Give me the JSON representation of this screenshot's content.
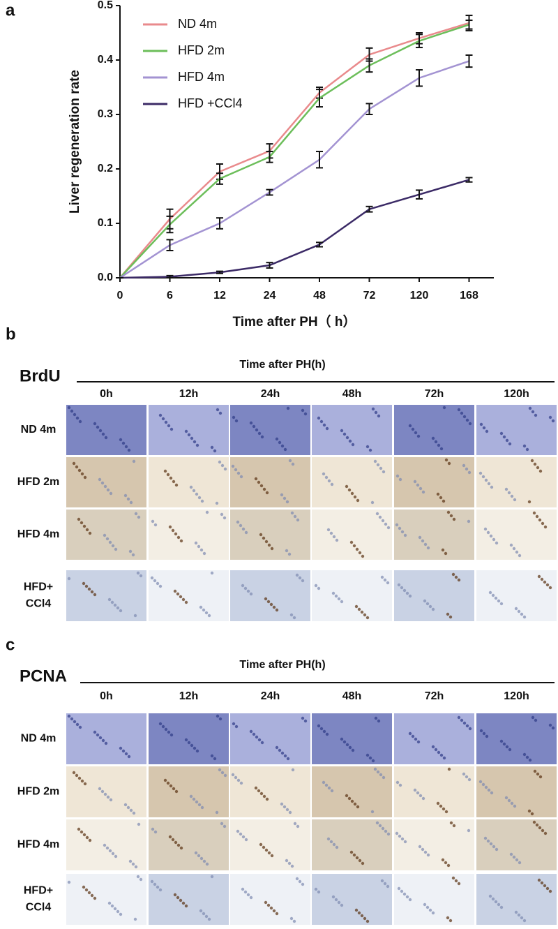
{
  "chart_data": {
    "type": "line",
    "panel_label": "a",
    "ylabel": "Liver regeneration rate",
    "xlabel": "Time after PH（ h）",
    "categories": [
      "0",
      "6",
      "12",
      "24",
      "48",
      "72",
      "120",
      "168"
    ],
    "ylim": [
      0,
      0.5
    ],
    "yticks": [
      {
        "value": 0,
        "label": "0.0"
      },
      0.1,
      0.2,
      0.3,
      0.4,
      0.5
    ],
    "series": [
      {
        "name": "ND 4m",
        "color": "#e98a8c",
        "values": [
          0,
          0.108,
          0.195,
          0.233,
          0.34,
          0.41,
          0.44,
          0.468
        ],
        "errors": [
          0,
          0.018,
          0.014,
          0.013,
          0.01,
          0.012,
          0.01,
          0.014
        ]
      },
      {
        "name": "HFD 2m",
        "color": "#6cbe5a",
        "values": [
          0,
          0.098,
          0.182,
          0.222,
          0.33,
          0.39,
          0.435,
          0.465
        ],
        "errors": [
          0,
          0.015,
          0.01,
          0.01,
          0.016,
          0.012,
          0.012,
          0.008
        ]
      },
      {
        "name": "HFD 4m",
        "color": "#a393d2",
        "values": [
          0,
          0.06,
          0.1,
          0.157,
          0.217,
          0.31,
          0.367,
          0.398
        ],
        "errors": [
          0,
          0.01,
          0.01,
          0.005,
          0.015,
          0.01,
          0.015,
          0.011
        ]
      },
      {
        "name": "HFD +CCl4",
        "color": "#3b2a66",
        "values": [
          0,
          0.002,
          0.01,
          0.023,
          0.061,
          0.126,
          0.153,
          0.18
        ],
        "errors": [
          0,
          0.002,
          0.002,
          0.005,
          0.004,
          0.005,
          0.008,
          0.004
        ]
      }
    ]
  },
  "panels": [
    {
      "label": "b",
      "stain": "BrdU",
      "header": "Time after PH(h)",
      "columns": [
        "0h",
        "12h",
        "24h",
        "48h",
        "72h",
        "120h"
      ],
      "rows": [
        [
          "ND 4m"
        ],
        [
          "HFD 2m"
        ],
        [
          "HFD 4m"
        ],
        [
          "HFD+",
          "CCl4"
        ]
      ]
    },
    {
      "label": "c",
      "stain": "PCNA",
      "header": "Time after PH(h)",
      "columns": [
        "0h",
        "12h",
        "24h",
        "48h",
        "72h",
        "120h"
      ],
      "rows": [
        [
          "ND 4m"
        ],
        [
          "HFD 2m"
        ],
        [
          "HFD 4m"
        ],
        [
          "HFD+",
          "CCl4"
        ]
      ]
    }
  ]
}
